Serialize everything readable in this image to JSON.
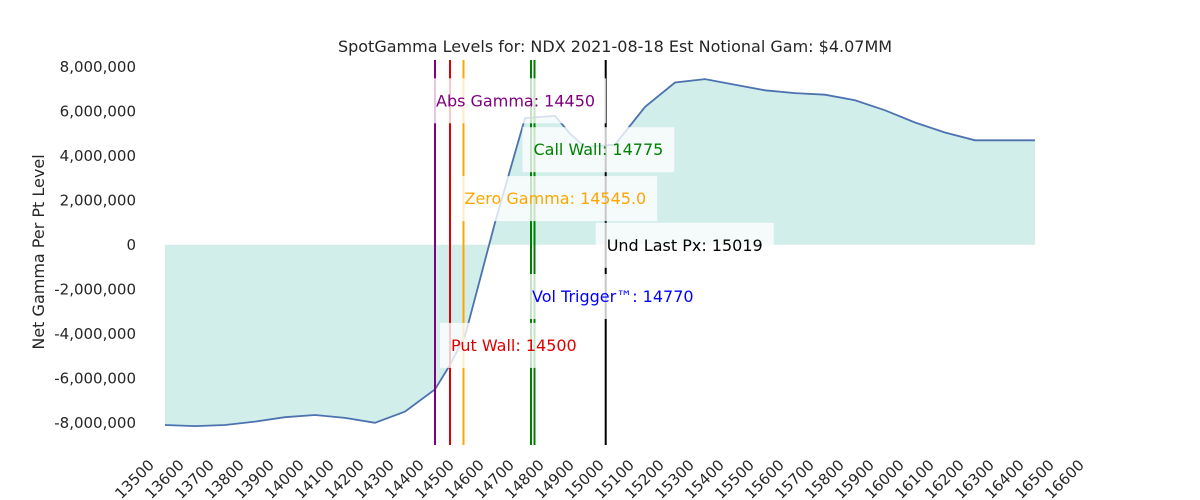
{
  "chart_data": {
    "type": "line",
    "title": "SpotGamma Levels for: NDX  2021-08-18 Est Notional Gam: $4.07MM",
    "xlabel": "",
    "ylabel": "Net Gamma Per Pt Level",
    "xlim": [
      13500,
      16600
    ],
    "ylim": [
      -9000000,
      8400000
    ],
    "x_ticks": [
      13500,
      13600,
      13700,
      13800,
      13900,
      14000,
      14100,
      14200,
      14300,
      14400,
      14500,
      14600,
      14700,
      14800,
      14900,
      15000,
      15100,
      15200,
      15300,
      15400,
      15500,
      15600,
      15700,
      15800,
      15900,
      16000,
      16100,
      16200,
      16300,
      16400,
      16500,
      16600
    ],
    "y_ticks": [
      -8000000,
      -6000000,
      -4000000,
      -2000000,
      0,
      2000000,
      4000000,
      6000000,
      8000000
    ],
    "y_tick_labels": [
      "-8,000,000",
      "-6,000,000",
      "-4,000,000",
      "-2,000,000",
      "0",
      "2,000,000",
      "4,000,000",
      "6,000,000",
      "8,000,000"
    ],
    "grid": false,
    "series": [
      {
        "color": "#4c72b0",
        "fill_color": "#d2eeea",
        "x": [
          13550,
          13650,
          13750,
          13850,
          13950,
          14050,
          14150,
          14250,
          14350,
          14450,
          14500,
          14550,
          14650,
          14750,
          14850,
          14900,
          14950,
          15050,
          15150,
          15250,
          15350,
          15450,
          15550,
          15650,
          15750,
          15850,
          15950,
          16050,
          16150,
          16250,
          16350,
          16450
        ],
        "y": [
          -8100000,
          -8150000,
          -8100000,
          -7950000,
          -7750000,
          -7650000,
          -7780000,
          -8000000,
          -7500000,
          -6500000,
          -5400000,
          -4100000,
          1000000,
          5700000,
          5800000,
          5000000,
          4400000,
          4500000,
          6200000,
          7300000,
          7450000,
          7200000,
          6950000,
          6820000,
          6750000,
          6500000,
          6050000,
          5500000,
          5050000,
          4700000,
          4700000,
          4700000
        ]
      }
    ],
    "levels": [
      {
        "name": "Abs Gamma",
        "label": "Abs Gamma: 14450",
        "x": 14450,
        "color": "#800080",
        "label_y": 6500000
      },
      {
        "name": "Put Wall",
        "label": "Put Wall: 14500",
        "x": 14500,
        "color": "#e00000",
        "label_y": -4500000
      },
      {
        "name": "Zero Gamma",
        "label": "Zero Gamma: 14545.0",
        "x": 14545,
        "color": "#ffa500",
        "label_y": 2100000
      },
      {
        "name": "Vol Trigger",
        "label": "Vol Trigger™: 14770",
        "x": 14770,
        "color": "#0000ff",
        "label_y": -2300000
      },
      {
        "name": "Call Wall",
        "label": "Call Wall: 14775",
        "x": 14775,
        "color": "#008000",
        "label_y": 4300000
      },
      {
        "name": "Und Last Px",
        "label": "Und Last Px: 15019",
        "x": 15019,
        "color": "#000000",
        "label_y": 0
      }
    ]
  }
}
